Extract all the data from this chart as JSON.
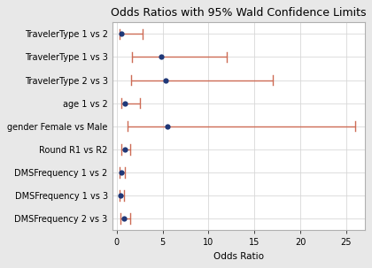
{
  "title": "Odds Ratios with 95% Wald Confidence Limits",
  "xlabel": "Odds Ratio",
  "labels": [
    "TravelerType 1 vs 2",
    "TravelerType 1 vs 3",
    "TravelerType 2 vs 3",
    "age 1 vs 2",
    "gender Female vs Male",
    "Round R1 vs R2",
    "DMSFrequency 1 vs 2",
    "DMSFrequency 1 vs 3",
    "DMSFrequency 2 vs 3"
  ],
  "estimates": [
    0.55,
    4.8,
    5.3,
    0.85,
    5.5,
    0.85,
    0.5,
    0.45,
    0.75
  ],
  "lower": [
    0.3,
    1.7,
    1.6,
    0.5,
    1.2,
    0.55,
    0.35,
    0.35,
    0.45
  ],
  "upper": [
    2.8,
    12.0,
    17.0,
    2.5,
    26.0,
    1.5,
    0.9,
    0.75,
    1.5
  ],
  "dot_color": "#1f3878",
  "line_color": "#cd6b55",
  "outer_bg": "#e8e8e8",
  "plot_bg": "#ffffff",
  "grid_color": "#d8d8d8",
  "border_color": "#b0b0b0",
  "xlim": [
    -0.5,
    27
  ],
  "xticks": [
    0,
    5,
    10,
    15,
    20,
    25
  ],
  "title_fontsize": 9,
  "label_fontsize": 7,
  "tick_fontsize": 7,
  "xlabel_fontsize": 7.5
}
